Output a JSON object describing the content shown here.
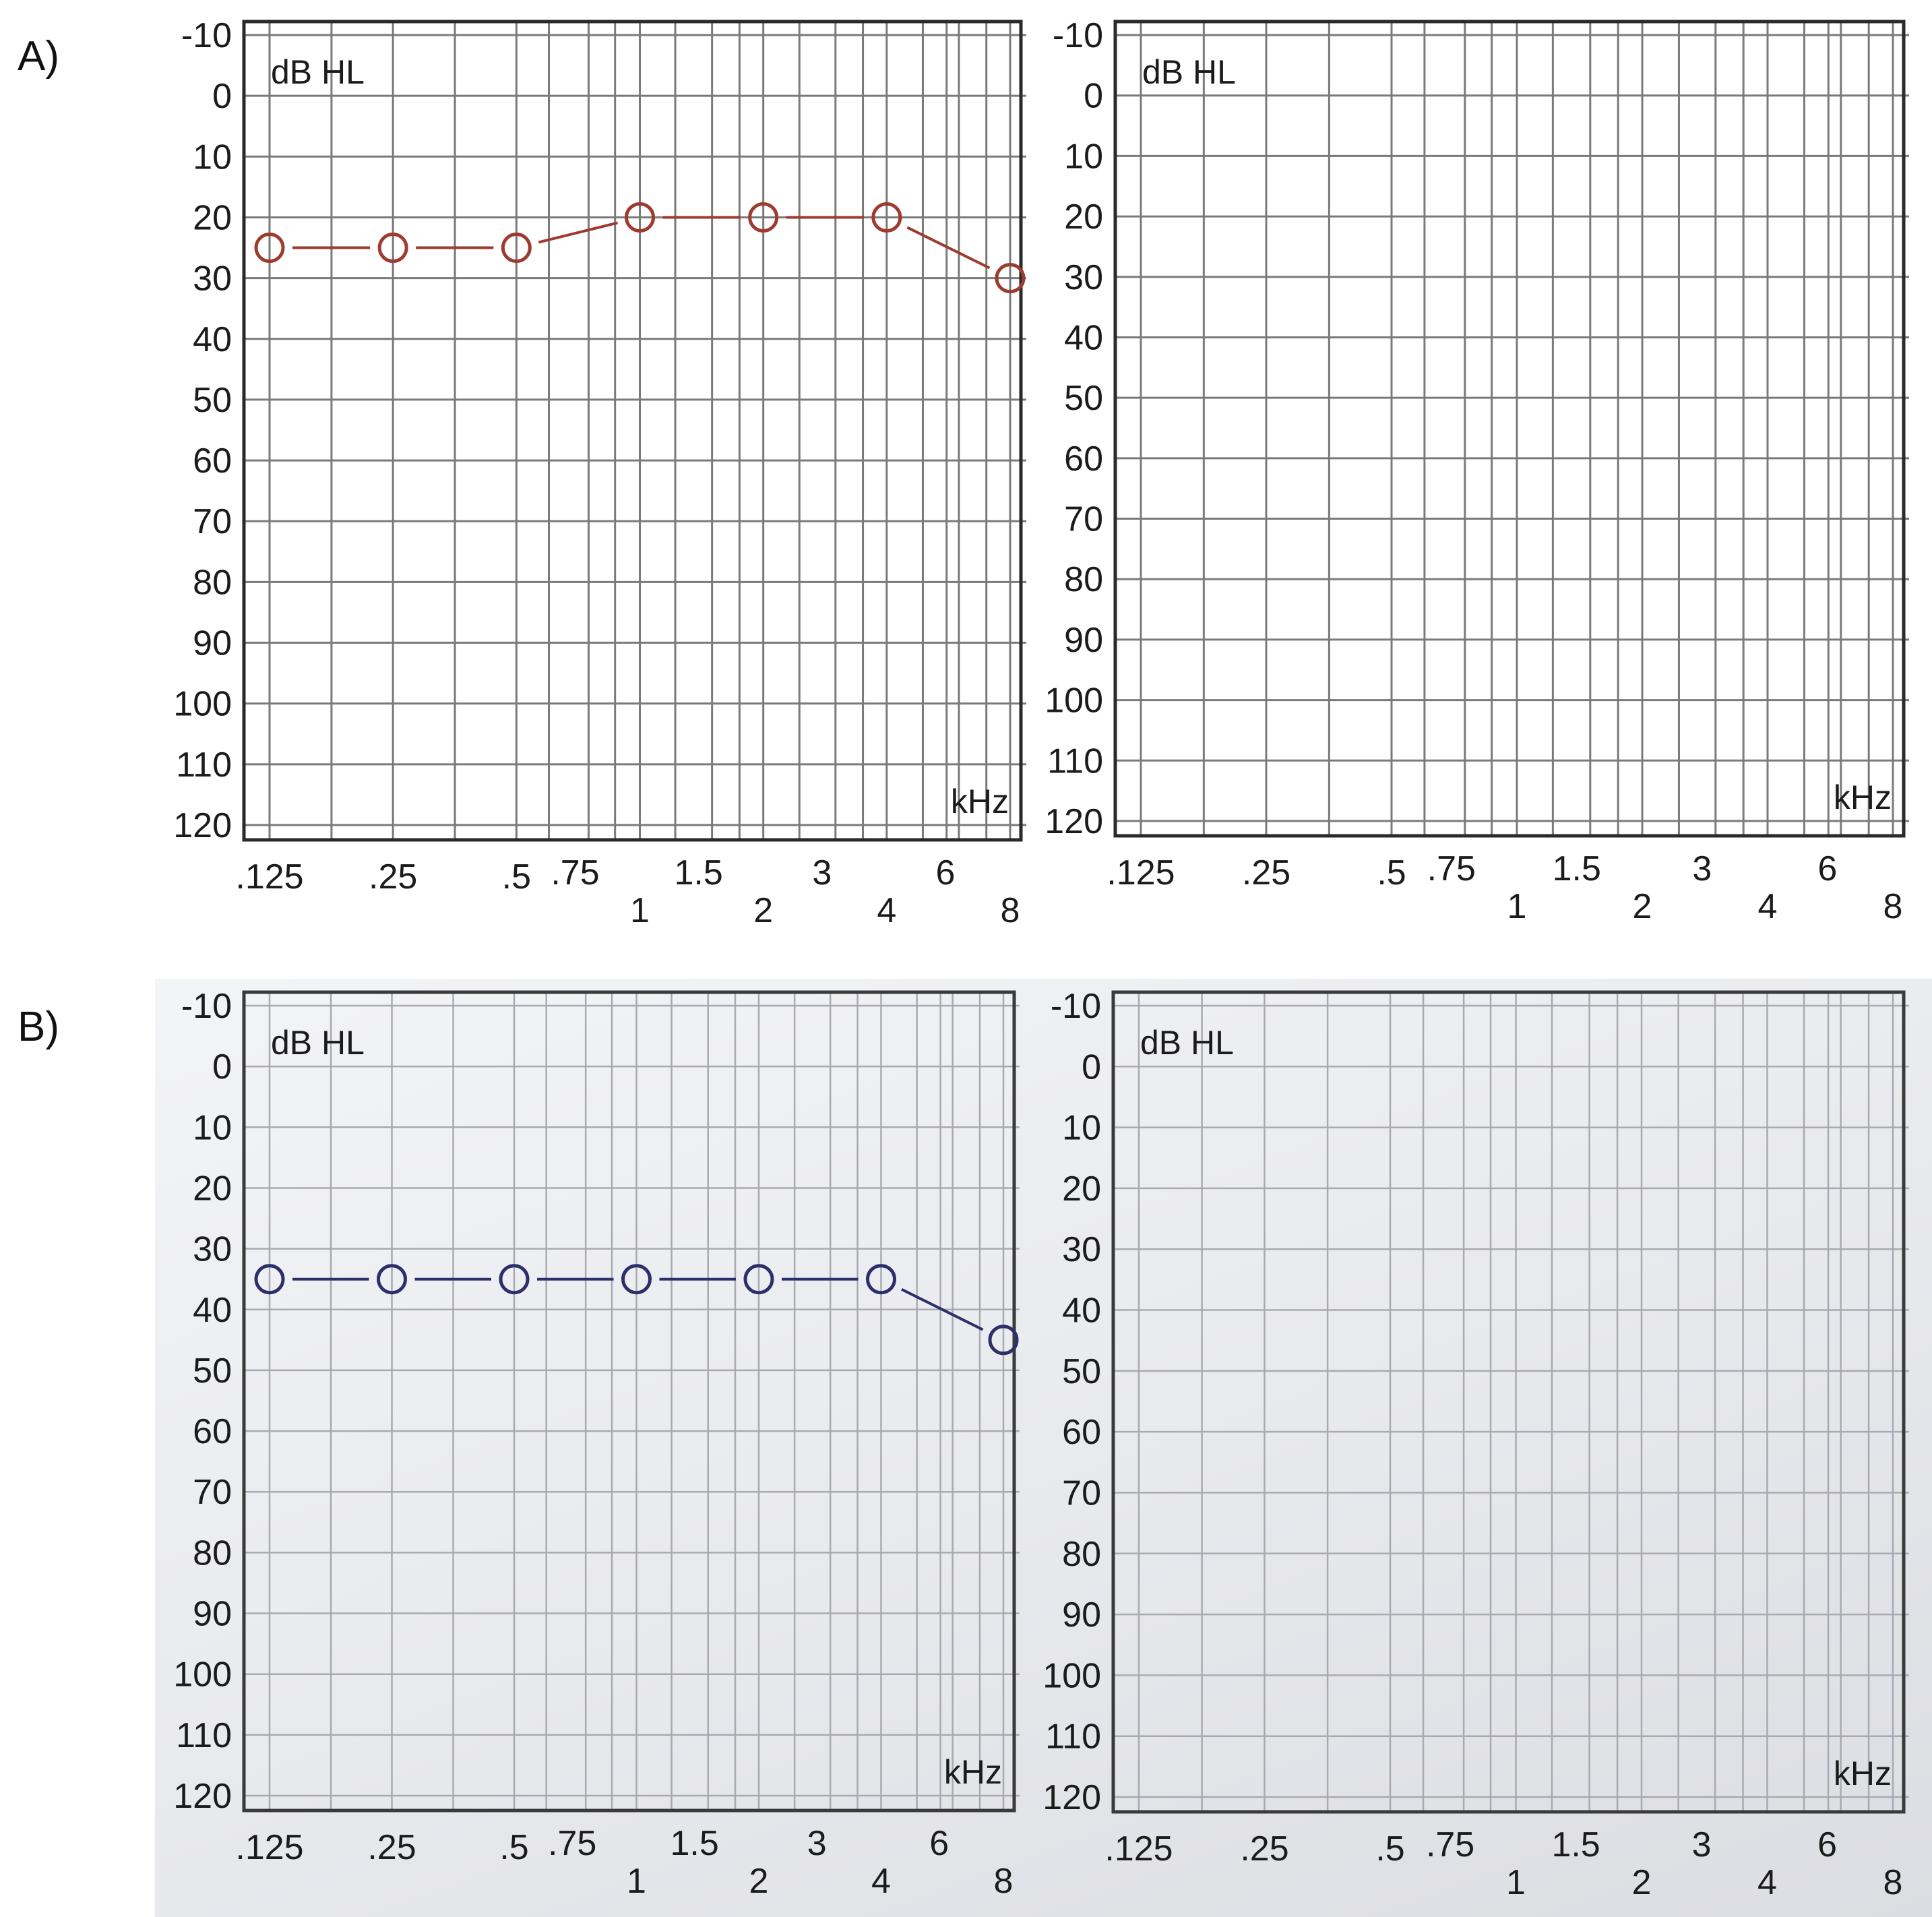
{
  "panel_labels": [
    "A)",
    "B)"
  ],
  "chart_data": [
    {
      "type": "line",
      "panel": "A)",
      "ylabel": "dB HL",
      "xlabel": "kHz",
      "ylim": [
        -10,
        120
      ],
      "y_inverted": true,
      "y_ticks": [
        "-10",
        "0",
        "10",
        "20",
        "30",
        "40",
        "50",
        "60",
        "70",
        "80",
        "90",
        "100",
        "110",
        "120"
      ],
      "x_ticks_major": [
        ".125",
        ".25",
        ".5",
        "1",
        "2",
        "4",
        "8"
      ],
      "x_ticks_minor": [
        ".75",
        "1.5",
        "3",
        "6"
      ],
      "grid": true,
      "colors": {
        "series": "#9e3b2f"
      },
      "series": [
        {
          "marker": "circle",
          "x": [
            0.125,
            0.25,
            0.5,
            1,
            2,
            4,
            8
          ],
          "values": [
            25,
            25,
            25,
            20,
            20,
            20,
            30
          ]
        }
      ]
    },
    {
      "type": "line",
      "panel": "A)",
      "ylabel": "dB HL",
      "xlabel": "kHz",
      "ylim": [
        -10,
        120
      ],
      "y_inverted": true,
      "y_ticks": [
        "-10",
        "0",
        "10",
        "20",
        "30",
        "40",
        "50",
        "60",
        "70",
        "80",
        "90",
        "100",
        "110",
        "120"
      ],
      "x_ticks_major": [
        ".125",
        ".25",
        ".5",
        "1",
        "2",
        "4",
        "8"
      ],
      "x_ticks_minor": [
        ".75",
        "1.5",
        "3",
        "6"
      ],
      "grid": true,
      "series": []
    },
    {
      "type": "line",
      "panel": "B)",
      "ylabel": "dB HL",
      "xlabel": "kHz",
      "ylim": [
        -10,
        120
      ],
      "y_inverted": true,
      "y_ticks": [
        "-10",
        "0",
        "10",
        "20",
        "30",
        "40",
        "50",
        "60",
        "70",
        "80",
        "90",
        "100",
        "110",
        "120"
      ],
      "x_ticks_major": [
        ".125",
        ".25",
        ".5",
        "1",
        "2",
        "4",
        "8"
      ],
      "x_ticks_minor": [
        ".75",
        "1.5",
        "3",
        "6"
      ],
      "grid": true,
      "colors": {
        "series": "#2d2f6b"
      },
      "series": [
        {
          "marker": "circle",
          "x": [
            0.125,
            0.25,
            0.5,
            1,
            2,
            4,
            8
          ],
          "values": [
            35,
            35,
            35,
            35,
            35,
            35,
            45
          ]
        }
      ]
    },
    {
      "type": "line",
      "panel": "B)",
      "ylabel": "dB HL",
      "xlabel": "kHz",
      "ylim": [
        -10,
        120
      ],
      "y_inverted": true,
      "y_ticks": [
        "-10",
        "0",
        "10",
        "20",
        "30",
        "40",
        "50",
        "60",
        "70",
        "80",
        "90",
        "100",
        "110",
        "120"
      ],
      "x_ticks_major": [
        ".125",
        ".25",
        ".5",
        "1",
        "2",
        "4",
        "8"
      ],
      "x_ticks_minor": [
        ".75",
        "1.5",
        "3",
        "6"
      ],
      "grid": true,
      "series": []
    }
  ]
}
